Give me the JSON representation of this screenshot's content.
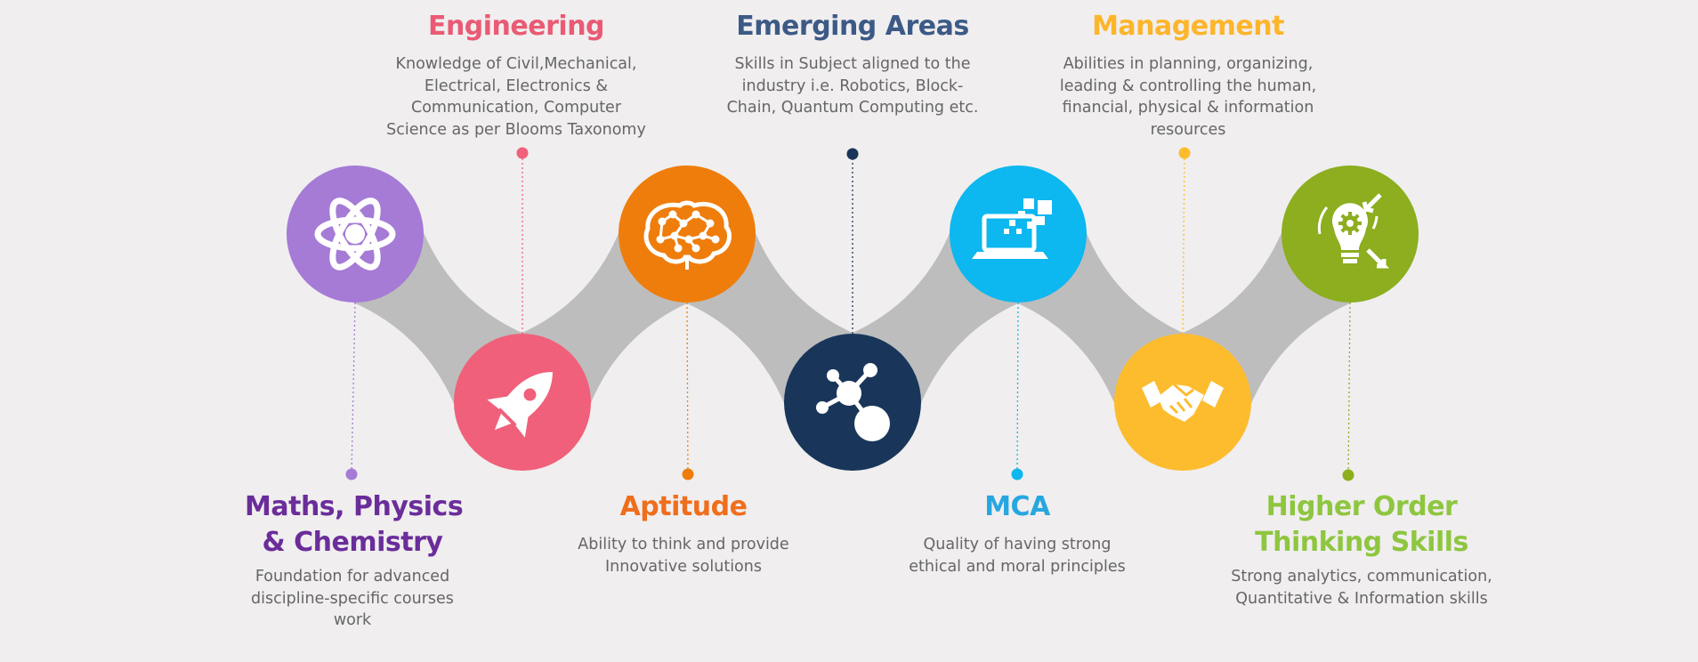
{
  "colors": {
    "background": "#f0eeef",
    "connector": "#bdbdbd",
    "purple": "#a57bd6",
    "pink": "#f0607a",
    "orange": "#ef7d0c",
    "navy": "#19365a",
    "sky": "#0db7ef",
    "yellow": "#fdbc2e",
    "green": "#8cae1f"
  },
  "items": [
    {
      "key": "maths",
      "icon": "atom-icon",
      "color": "#a57bd6",
      "title_color": "#6a2d9a",
      "title_lines": [
        "Maths, Physics",
        "& Chemistry"
      ],
      "desc_lines": [
        "Foundation for advanced",
        "discipline-specific courses",
        "work"
      ]
    },
    {
      "key": "engineering",
      "icon": "rocket-icon",
      "color": "#f0607a",
      "title_color": "#ea5a74",
      "title_lines": [
        "Engineering"
      ],
      "desc_lines": [
        "Knowledge of Civil,Mechanical,",
        "Electrical, Electronics &",
        "Communication, Computer",
        "Science as per Blooms Taxonomy"
      ]
    },
    {
      "key": "aptitude",
      "icon": "brain-circuit-icon",
      "color": "#ef7d0c",
      "title_color": "#ef6e1c",
      "title_lines": [
        "Aptitude"
      ],
      "desc_lines": [
        "Ability to think and provide",
        "Innovative solutions"
      ]
    },
    {
      "key": "emerging",
      "icon": "network-nodes-icon",
      "color": "#19365a",
      "title_color": "#3c5a86",
      "title_lines": [
        "Emerging Areas"
      ],
      "desc_lines": [
        "Skills in Subject aligned to the",
        "industry i.e. Robotics, Block-",
        "Chain, Quantum Computing etc."
      ]
    },
    {
      "key": "mca",
      "icon": "laptop-pixels-icon",
      "color": "#0db7ef",
      "title_color": "#27a7e0",
      "title_lines": [
        "MCA"
      ],
      "desc_lines": [
        "Quality of having strong",
        "ethical and moral principles"
      ]
    },
    {
      "key": "management",
      "icon": "handshake-icon",
      "color": "#fdbc2e",
      "title_color": "#fdb52a",
      "title_lines": [
        "Management"
      ],
      "desc_lines": [
        "Abilities in planning, organizing,",
        "leading & controlling the human,",
        "financial, physical & information",
        "resources"
      ]
    },
    {
      "key": "hots",
      "icon": "idea-bulb-gear-icon",
      "color": "#8cae1f",
      "title_color": "#8ec63f",
      "title_lines": [
        "Higher Order",
        "Thinking Skills"
      ],
      "desc_lines": [
        "Strong analytics, communication,",
        "Quantitative & Information skills"
      ]
    }
  ]
}
